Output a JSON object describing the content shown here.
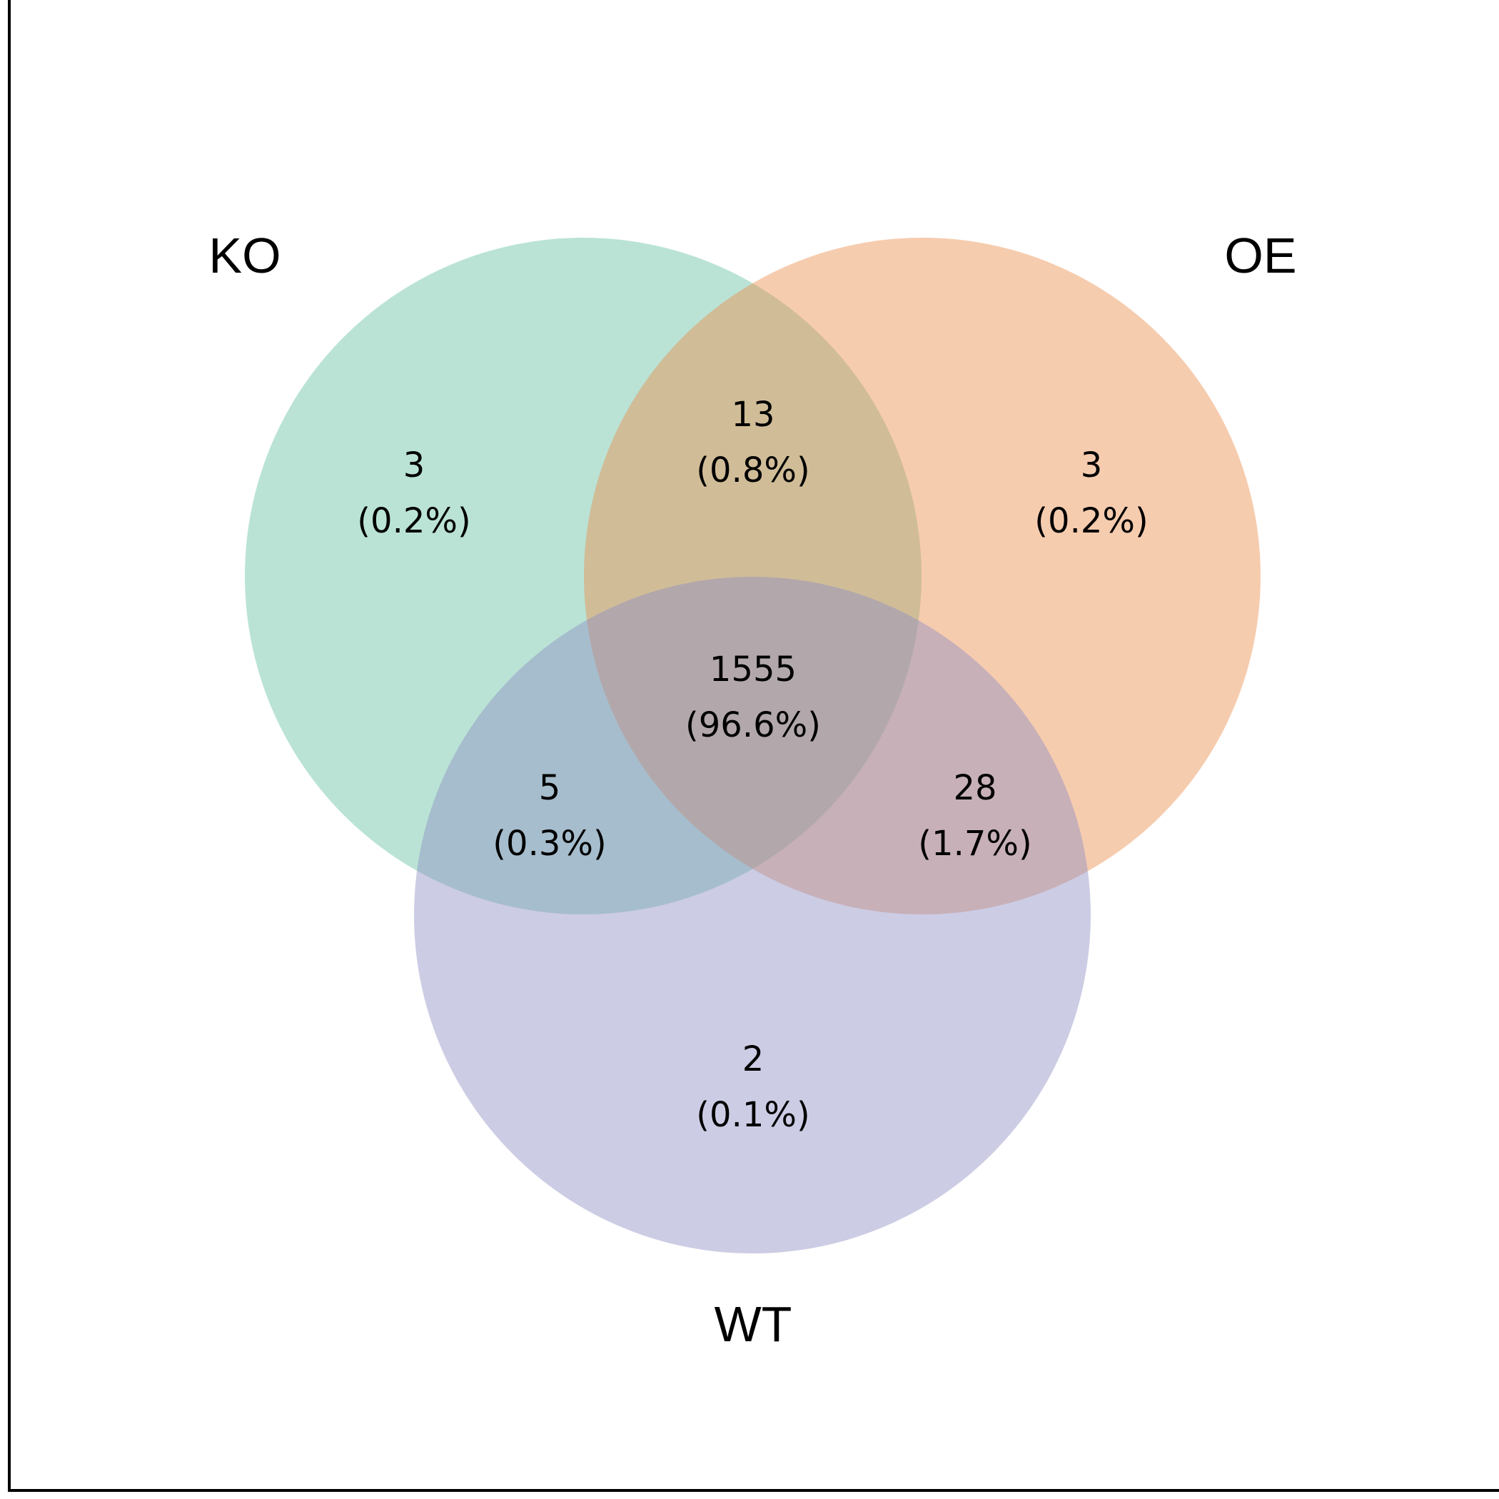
{
  "sets": [
    {
      "id": "KO",
      "label": "KO",
      "color": "#66c2a5"
    },
    {
      "id": "OE",
      "label": "OE",
      "color": "#ec8e4e"
    },
    {
      "id": "WT",
      "label": "WT",
      "color": "#8e8fc3"
    }
  ],
  "regions": [
    {
      "id": "ko-only",
      "sets": [
        "KO"
      ],
      "count": "3",
      "percent": "(0.2%)"
    },
    {
      "id": "ko-oe",
      "sets": [
        "KO",
        "OE"
      ],
      "count": "13",
      "percent": "(0.8%)"
    },
    {
      "id": "oe-only",
      "sets": [
        "OE"
      ],
      "count": "3",
      "percent": "(0.2%)"
    },
    {
      "id": "ko-oe-wt",
      "sets": [
        "KO",
        "OE",
        "WT"
      ],
      "count": "1555",
      "percent": "(96.6%)"
    },
    {
      "id": "ko-wt",
      "sets": [
        "KO",
        "WT"
      ],
      "count": "5",
      "percent": "(0.3%)"
    },
    {
      "id": "oe-wt",
      "sets": [
        "OE",
        "WT"
      ],
      "count": "28",
      "percent": "(1.7%)"
    },
    {
      "id": "wt-only",
      "sets": [
        "WT"
      ],
      "count": "2",
      "percent": "(0.1%)"
    }
  ],
  "style": {
    "circle_opacity": 0.45,
    "frame_color": "#000000"
  }
}
